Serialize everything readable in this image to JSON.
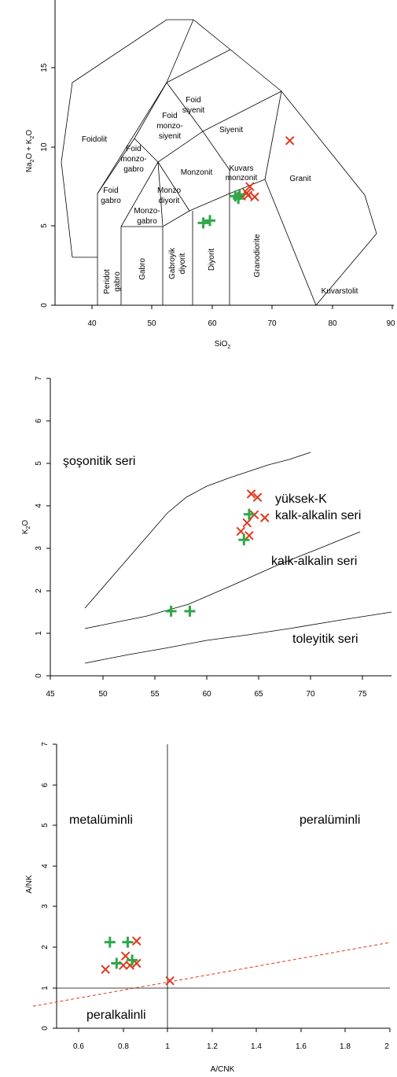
{
  "chart_data": [
    {
      "type": "scatter",
      "title": "",
      "xlabel": "SiO2",
      "ylabel": "Na2O + K2O",
      "xlim": [
        34,
        90
      ],
      "ylim": [
        0,
        18
      ],
      "xticks": [
        40,
        50,
        60,
        70,
        80,
        90
      ],
      "yticks": [
        0,
        5,
        10,
        15
      ],
      "fields": [
        "Foidolit",
        "Foid siyenit",
        "Foid monzo-siyenit",
        "Siyenit",
        "Foid monzo-gabro",
        "Monzonit",
        "Kuvars monzonit",
        "Granit",
        "Foid gabro",
        "Monzo diyorit",
        "Monzo-gabro",
        "Peridot gabro",
        "Gabro",
        "Gabroyik diyorit",
        "Diyorit",
        "Granodiorite",
        "Kuvarstolit"
      ],
      "series": [
        {
          "marker": "x",
          "color": "#e0381d",
          "points": [
            [
              72.8,
              10.4
            ],
            [
              66.2,
              7.5
            ],
            [
              65.7,
              7.1
            ],
            [
              64.8,
              6.9
            ],
            [
              65.9,
              6.95
            ],
            [
              67.0,
              6.85
            ]
          ]
        },
        {
          "marker": "+",
          "color": "#2ea84a",
          "points": [
            [
              58.5,
              5.2
            ],
            [
              59.6,
              5.35
            ],
            [
              63.8,
              6.9
            ],
            [
              64.5,
              7.0
            ],
            [
              64.3,
              6.75
            ]
          ]
        }
      ]
    },
    {
      "type": "scatter",
      "title": "",
      "xlabel": "",
      "ylabel": "K2O",
      "xlim": [
        45,
        78
      ],
      "ylim": [
        0,
        7
      ],
      "xticks": [
        45,
        50,
        55,
        60,
        65,
        70,
        75
      ],
      "yticks": [
        0,
        1,
        2,
        3,
        4,
        5,
        6,
        7
      ],
      "fields": [
        "şoşonitik seri",
        "yüksek-K",
        "kalk-alkalin seri",
        "kalk-alkalin seri",
        "toleyitik seri"
      ],
      "series": [
        {
          "marker": "x",
          "color": "#e0381d",
          "points": [
            [
              64.3,
              4.28
            ],
            [
              64.9,
              4.2
            ],
            [
              64.6,
              3.79
            ],
            [
              65.6,
              3.72
            ],
            [
              63.9,
              3.6
            ],
            [
              63.3,
              3.4
            ],
            [
              64.1,
              3.3
            ]
          ]
        },
        {
          "marker": "+",
          "color": "#2ea84a",
          "points": [
            [
              64.1,
              3.8
            ],
            [
              63.6,
              3.2
            ],
            [
              56.6,
              1.52
            ],
            [
              58.4,
              1.52
            ]
          ]
        }
      ]
    },
    {
      "type": "scatter",
      "title": "",
      "xlabel": "A/CNK",
      "ylabel": "A/NK",
      "xlim": [
        0.5,
        2.0
      ],
      "ylim": [
        0,
        7
      ],
      "xticks": [
        0.6,
        0.8,
        1.0,
        1.2,
        1.4,
        1.6,
        1.8,
        2.0
      ],
      "yticks": [
        0,
        1,
        2,
        3,
        4,
        5,
        6,
        7
      ],
      "fields": [
        "metalüminli",
        "peralüminli",
        "peralkalinli"
      ],
      "series": [
        {
          "marker": "x",
          "color": "#e0381d",
          "points": [
            [
              0.86,
              2.15
            ],
            [
              0.81,
              1.78
            ],
            [
              0.72,
              1.45
            ],
            [
              0.8,
              1.55
            ],
            [
              0.83,
              1.55
            ],
            [
              0.86,
              1.6
            ],
            [
              1.01,
              1.17
            ]
          ]
        },
        {
          "marker": "+",
          "color": "#2ea84a",
          "points": [
            [
              0.74,
              2.12
            ],
            [
              0.82,
              2.12
            ],
            [
              0.77,
              1.6
            ],
            [
              0.84,
              1.68
            ]
          ]
        }
      ]
    }
  ]
}
